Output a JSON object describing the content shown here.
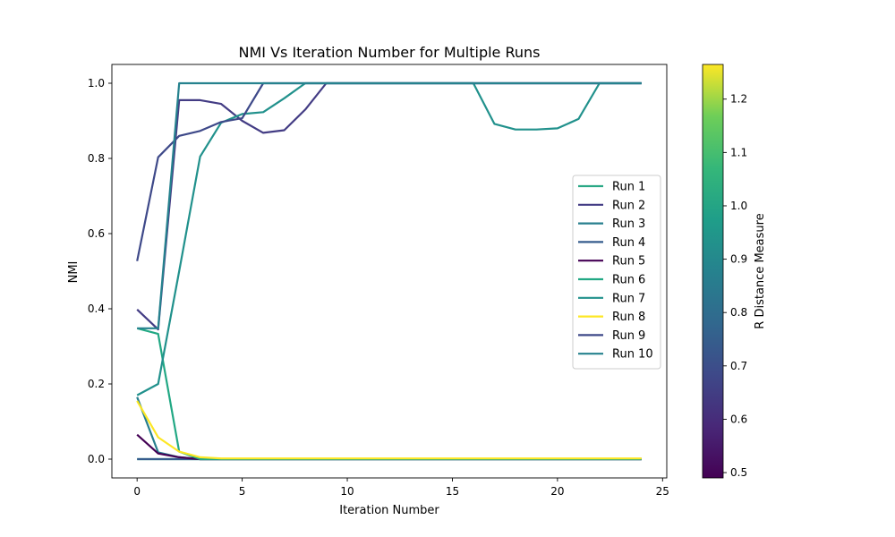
{
  "chart_data": {
    "type": "line",
    "title": "NMI Vs Iteration Number for Multiple Runs",
    "xlabel": "Iteration Number",
    "ylabel": "NMI",
    "xlim": [
      -1.2,
      25.2
    ],
    "ylim": [
      -0.05,
      1.05
    ],
    "xticks": [
      0,
      5,
      10,
      15,
      20,
      25
    ],
    "yticks": [
      0.0,
      0.2,
      0.4,
      0.6,
      0.8,
      1.0
    ],
    "grid": false,
    "legend_position": "center-right",
    "x": [
      0,
      1,
      2,
      3,
      4,
      5,
      6,
      7,
      8,
      9,
      10,
      11,
      12,
      13,
      14,
      15,
      16,
      17,
      18,
      19,
      20,
      21,
      22,
      23,
      24
    ],
    "series": [
      {
        "name": "Run 1",
        "color": "#2aa885",
        "r_distance": 0.95,
        "values": [
          0,
          0,
          0,
          0,
          0,
          0,
          0,
          0,
          0,
          0,
          0,
          0,
          0,
          0,
          0,
          0,
          0,
          0,
          0,
          0,
          0,
          0,
          0,
          0,
          0
        ]
      },
      {
        "name": "Run 2",
        "color": "#433c84",
        "r_distance": 0.6,
        "values": [
          0.398,
          0.345,
          0.955,
          0.955,
          0.945,
          0.9,
          0.868,
          0.875,
          0.93,
          1,
          1,
          1,
          1,
          1,
          1,
          1,
          1,
          1,
          1,
          1,
          1,
          1,
          1,
          1,
          1
        ]
      },
      {
        "name": "Run 3",
        "color": "#277f8e",
        "r_distance": 0.84,
        "values": [
          0.165,
          0.018,
          0.005,
          0,
          0,
          0,
          0,
          0,
          0,
          0,
          0,
          0,
          0,
          0,
          0,
          0,
          0,
          0,
          0,
          0,
          0,
          0,
          0,
          0,
          0
        ]
      },
      {
        "name": "Run 4",
        "color": "#365c8d",
        "r_distance": 0.73,
        "values": [
          0.0,
          0.0,
          0.0,
          0.0,
          0.0,
          0.0,
          0.0,
          0.0,
          0.0,
          0.0,
          0.0,
          0.0,
          0.0,
          0.0,
          0.0,
          0.0,
          0.0,
          0.0,
          0.0,
          0.0,
          0.0,
          0.0,
          0.0,
          0.0,
          0.0
        ]
      },
      {
        "name": "Run 5",
        "color": "#440154",
        "r_distance": 0.5,
        "values": [
          0.065,
          0.015,
          0.005,
          0,
          0,
          0,
          0,
          0,
          0,
          0,
          0,
          0,
          0,
          0,
          0,
          0,
          0,
          0,
          0,
          0,
          0,
          0,
          0,
          0,
          0
        ]
      },
      {
        "name": "Run 6",
        "color": "#22a884",
        "r_distance": 0.96,
        "values": [
          0.348,
          0.333,
          0.02,
          0,
          0,
          0,
          0,
          0,
          0,
          0,
          0,
          0,
          0,
          0,
          0,
          0,
          0,
          0,
          0,
          0,
          0,
          0,
          0,
          0,
          0
        ]
      },
      {
        "name": "Run 7",
        "color": "#21918c",
        "r_distance": 0.9,
        "values": [
          0.17,
          0.2,
          0.5,
          0.805,
          0.895,
          0.918,
          0.923,
          0.96,
          1,
          1,
          1,
          1,
          1,
          1,
          1,
          1,
          1,
          0.892,
          0.877,
          0.877,
          0.88,
          0.905,
          1,
          1,
          1
        ]
      },
      {
        "name": "Run 8",
        "color": "#fde725",
        "r_distance": 1.26,
        "values": [
          0.155,
          0.058,
          0.02,
          0.005,
          0.002,
          0.002,
          0.002,
          0.002,
          0.002,
          0.002,
          0.002,
          0.002,
          0.002,
          0.002,
          0.002,
          0.002,
          0.002,
          0.002,
          0.002,
          0.002,
          0.002,
          0.002,
          0.002,
          0.002,
          0.002
        ]
      },
      {
        "name": "Run 9",
        "color": "#3e4989",
        "r_distance": 0.65,
        "values": [
          0.527,
          0.803,
          0.86,
          0.873,
          0.897,
          0.907,
          1,
          1,
          1,
          1,
          1,
          1,
          1,
          1,
          1,
          1,
          1,
          1,
          1,
          1,
          1,
          1,
          1,
          1,
          1
        ]
      },
      {
        "name": "Run 10",
        "color": "#26828e",
        "r_distance": 0.86,
        "values": [
          0.348,
          0.348,
          1,
          1,
          1,
          1,
          1,
          1,
          1,
          1,
          1,
          1,
          1,
          1,
          1,
          1,
          1,
          1,
          1,
          1,
          1,
          1,
          1,
          1,
          1
        ]
      }
    ],
    "colorbar": {
      "label": "R Distance Measure",
      "range": [
        0.49,
        1.265
      ],
      "ticks": [
        0.5,
        0.6,
        0.7,
        0.8,
        0.9,
        1.0,
        1.1,
        1.2
      ],
      "colormap": "viridis"
    }
  }
}
